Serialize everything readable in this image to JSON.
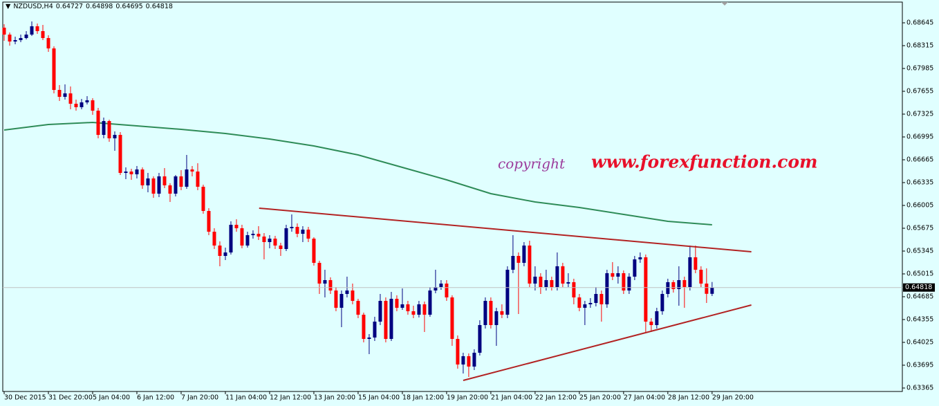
{
  "chart_data": {
    "type": "candlestick",
    "header": {
      "symbol": "NZDUSD,H4",
      "ohlc": [
        0.64727,
        0.64898,
        0.64695,
        0.64818
      ]
    },
    "annotations": [
      "copyright",
      "www.forexfunction.com"
    ],
    "up_color": "#000080",
    "down_color": "#ff0000",
    "ylim": [
      0.63325,
      0.68935
    ],
    "yticks": [
      0.68645,
      0.68315,
      0.67985,
      0.67655,
      0.67325,
      0.66995,
      0.66665,
      0.66335,
      0.66005,
      0.65675,
      0.65345,
      0.65015,
      0.64685,
      0.64355,
      0.64025,
      0.63695,
      0.63365
    ],
    "xlim": [
      -0.25,
      162.4
    ],
    "xticks": [
      {
        "value": 0,
        "label": "30 Dec 2015"
      },
      {
        "value": 8,
        "label": "31 Dec 20:00"
      },
      {
        "value": 16,
        "label": "5 Jan 04:00"
      },
      {
        "value": 24,
        "label": "6 Jan 12:00"
      },
      {
        "value": 32,
        "label": "7 Jan 20:00"
      },
      {
        "value": 40,
        "label": "11 Jan 04:00"
      },
      {
        "value": 48,
        "label": "12 Jan 12:00"
      },
      {
        "value": 56,
        "label": "13 Jan 20:00"
      },
      {
        "value": 64,
        "label": "15 Jan 04:00"
      },
      {
        "value": 72,
        "label": "18 Jan 12:00"
      },
      {
        "value": 80,
        "label": "19 Jan 20:00"
      },
      {
        "value": 88,
        "label": "21 Jan 04:00"
      },
      {
        "value": 96,
        "label": "22 Jan 12:00"
      },
      {
        "value": 104,
        "label": "25 Jan 20:00"
      },
      {
        "value": 112,
        "label": "27 Jan 04:00"
      },
      {
        "value": 120,
        "label": "28 Jan 12:00"
      },
      {
        "value": 128,
        "label": "29 Jan 20:00"
      }
    ],
    "candles": [
      [
        0.68575,
        0.68625,
        0.68385,
        0.68475
      ],
      [
        0.68475,
        0.68505,
        0.68315,
        0.68375
      ],
      [
        0.68375,
        0.68445,
        0.68335,
        0.68395
      ],
      [
        0.68395,
        0.68475,
        0.68365,
        0.68425
      ],
      [
        0.68425,
        0.68525,
        0.68405,
        0.68475
      ],
      [
        0.68475,
        0.68665,
        0.68455,
        0.68595
      ],
      [
        0.68595,
        0.68635,
        0.68485,
        0.68525
      ],
      [
        0.68525,
        0.68615,
        0.68395,
        0.68425
      ],
      [
        0.68425,
        0.68465,
        0.68225,
        0.68275
      ],
      [
        0.68275,
        0.68305,
        0.67625,
        0.67675
      ],
      [
        0.67675,
        0.67745,
        0.67515,
        0.67575
      ],
      [
        0.67575,
        0.67755,
        0.67535,
        0.67625
      ],
      [
        0.67625,
        0.67725,
        0.67395,
        0.67475
      ],
      [
        0.67475,
        0.67535,
        0.67375,
        0.67425
      ],
      [
        0.67425,
        0.67545,
        0.67395,
        0.67495
      ],
      [
        0.67495,
        0.67585,
        0.67465,
        0.67525
      ],
      [
        0.67525,
        0.67555,
        0.67315,
        0.67375
      ],
      [
        0.67375,
        0.67415,
        0.66975,
        0.67025
      ],
      [
        0.67025,
        0.67275,
        0.66975,
        0.67225
      ],
      [
        0.67225,
        0.67245,
        0.66925,
        0.66975
      ],
      [
        0.66975,
        0.67075,
        0.66795,
        0.67025
      ],
      [
        0.67025,
        0.67065,
        0.66445,
        0.66475
      ],
      [
        0.66475,
        0.66555,
        0.66385,
        0.66495
      ],
      [
        0.66495,
        0.66535,
        0.66375,
        0.66455
      ],
      [
        0.66455,
        0.66575,
        0.66395,
        0.66525
      ],
      [
        0.66525,
        0.66555,
        0.66245,
        0.66295
      ],
      [
        0.66295,
        0.66475,
        0.66195,
        0.66395
      ],
      [
        0.66395,
        0.66425,
        0.66115,
        0.66175
      ],
      [
        0.66175,
        0.66475,
        0.66125,
        0.66425
      ],
      [
        0.66425,
        0.66545,
        0.66255,
        0.66295
      ],
      [
        0.66295,
        0.66325,
        0.66055,
        0.66175
      ],
      [
        0.66175,
        0.66445,
        0.66135,
        0.66425
      ],
      [
        0.66425,
        0.66515,
        0.66225,
        0.66275
      ],
      [
        0.66275,
        0.66735,
        0.66245,
        0.66525
      ],
      [
        0.66525,
        0.66575,
        0.66425,
        0.66495
      ],
      [
        0.66495,
        0.66615,
        0.66225,
        0.66275
      ],
      [
        0.66275,
        0.66305,
        0.65885,
        0.65925
      ],
      [
        0.65925,
        0.65965,
        0.65575,
        0.65625
      ],
      [
        0.65625,
        0.65675,
        0.65375,
        0.65425
      ],
      [
        0.65425,
        0.65485,
        0.65125,
        0.65275
      ],
      [
        0.65275,
        0.65395,
        0.65215,
        0.65325
      ],
      [
        0.65325,
        0.65775,
        0.65295,
        0.65725
      ],
      [
        0.65725,
        0.65805,
        0.65625,
        0.65675
      ],
      [
        0.65675,
        0.65725,
        0.65385,
        0.65425
      ],
      [
        0.65425,
        0.65625,
        0.65395,
        0.65575
      ],
      [
        0.65575,
        0.65645,
        0.65525,
        0.65595
      ],
      [
        0.65595,
        0.65705,
        0.65505,
        0.65555
      ],
      [
        0.65555,
        0.65605,
        0.65225,
        0.65475
      ],
      [
        0.65475,
        0.65575,
        0.65385,
        0.65525
      ],
      [
        0.65525,
        0.65565,
        0.65375,
        0.65425
      ],
      [
        0.65425,
        0.65465,
        0.65275,
        0.65375
      ],
      [
        0.65375,
        0.65725,
        0.65345,
        0.65675
      ],
      [
        0.65675,
        0.65875,
        0.65625,
        0.65695
      ],
      [
        0.65695,
        0.65745,
        0.65545,
        0.65595
      ],
      [
        0.65595,
        0.65705,
        0.65475,
        0.65655
      ],
      [
        0.65655,
        0.65695,
        0.65475,
        0.65525
      ],
      [
        0.65525,
        0.65545,
        0.65135,
        0.65175
      ],
      [
        0.65175,
        0.65205,
        0.64725,
        0.64875
      ],
      [
        0.64875,
        0.65075,
        0.64675,
        0.64925
      ],
      [
        0.64925,
        0.64965,
        0.64725,
        0.64775
      ],
      [
        0.64775,
        0.64825,
        0.64475,
        0.64525
      ],
      [
        0.64525,
        0.64775,
        0.64245,
        0.64725
      ],
      [
        0.64725,
        0.64975,
        0.64675,
        0.64775
      ],
      [
        0.64775,
        0.64875,
        0.64575,
        0.64625
      ],
      [
        0.64625,
        0.64655,
        0.64375,
        0.64425
      ],
      [
        0.64425,
        0.64455,
        0.64025,
        0.64075
      ],
      [
        0.64075,
        0.64145,
        0.63855,
        0.64095
      ],
      [
        0.64095,
        0.64395,
        0.64045,
        0.64325
      ],
      [
        0.64325,
        0.64725,
        0.64275,
        0.64625
      ],
      [
        0.64625,
        0.64675,
        0.64025,
        0.64075
      ],
      [
        0.64075,
        0.64755,
        0.64045,
        0.64655
      ],
      [
        0.64655,
        0.64705,
        0.64475,
        0.64525
      ],
      [
        0.64525,
        0.64805,
        0.64495,
        0.64575
      ],
      [
        0.64575,
        0.64625,
        0.64425,
        0.64475
      ],
      [
        0.64475,
        0.64555,
        0.64375,
        0.64425
      ],
      [
        0.64425,
        0.64625,
        0.64385,
        0.64575
      ],
      [
        0.64575,
        0.64615,
        0.64175,
        0.64425
      ],
      [
        0.64425,
        0.64825,
        0.64395,
        0.64775
      ],
      [
        0.64775,
        0.65075,
        0.64735,
        0.64825
      ],
      [
        0.64825,
        0.64925,
        0.64785,
        0.64875
      ],
      [
        0.64875,
        0.64925,
        0.64625,
        0.64675
      ],
      [
        0.64675,
        0.64705,
        0.63975,
        0.64075
      ],
      [
        0.64075,
        0.64125,
        0.63645,
        0.63705
      ],
      [
        0.63705,
        0.63875,
        0.63575,
        0.63825
      ],
      [
        0.63825,
        0.63865,
        0.63525,
        0.63675
      ],
      [
        0.63675,
        0.63925,
        0.63625,
        0.63875
      ],
      [
        0.63875,
        0.64345,
        0.63835,
        0.64275
      ],
      [
        0.64275,
        0.64675,
        0.64225,
        0.64625
      ],
      [
        0.64625,
        0.64675,
        0.64225,
        0.64275
      ],
      [
        0.64275,
        0.64525,
        0.63975,
        0.64475
      ],
      [
        0.64475,
        0.64575,
        0.64375,
        0.64425
      ],
      [
        0.64425,
        0.65125,
        0.64375,
        0.65075
      ],
      [
        0.65075,
        0.65575,
        0.65025,
        0.65275
      ],
      [
        0.65275,
        0.65325,
        0.64435,
        0.65175
      ],
      [
        0.65175,
        0.65475,
        0.65125,
        0.65425
      ],
      [
        0.65425,
        0.65495,
        0.64825,
        0.64875
      ],
      [
        0.64875,
        0.65125,
        0.64775,
        0.64975
      ],
      [
        0.64975,
        0.65025,
        0.64725,
        0.64825
      ],
      [
        0.64825,
        0.65075,
        0.64775,
        0.64925
      ],
      [
        0.64925,
        0.64975,
        0.64775,
        0.64825
      ],
      [
        0.64825,
        0.65325,
        0.64775,
        0.65125
      ],
      [
        0.65125,
        0.65175,
        0.64825,
        0.64875
      ],
      [
        0.64875,
        0.65025,
        0.64825,
        0.64895
      ],
      [
        0.64895,
        0.64945,
        0.64575,
        0.64675
      ],
      [
        0.64675,
        0.64725,
        0.64475,
        0.64525
      ],
      [
        0.64525,
        0.64625,
        0.64275,
        0.64575
      ],
      [
        0.64575,
        0.64665,
        0.64525,
        0.64595
      ],
      [
        0.64595,
        0.64825,
        0.64545,
        0.64725
      ],
      [
        0.64725,
        0.64775,
        0.64325,
        0.64575
      ],
      [
        0.64575,
        0.65075,
        0.64525,
        0.65025
      ],
      [
        0.65025,
        0.65185,
        0.64925,
        0.64975
      ],
      [
        0.64975,
        0.65125,
        0.64875,
        0.65025
      ],
      [
        0.65025,
        0.65065,
        0.64725,
        0.64775
      ],
      [
        0.64775,
        0.65025,
        0.64725,
        0.64975
      ],
      [
        0.64975,
        0.65275,
        0.64925,
        0.65225
      ],
      [
        0.65225,
        0.65325,
        0.65175,
        0.65255
      ],
      [
        0.65255,
        0.65295,
        0.64175,
        0.64325
      ],
      [
        0.64325,
        0.64375,
        0.64175,
        0.64275
      ],
      [
        0.64275,
        0.64525,
        0.64225,
        0.64475
      ],
      [
        0.64475,
        0.64775,
        0.64425,
        0.64725
      ],
      [
        0.64725,
        0.64945,
        0.64675,
        0.64895
      ],
      [
        0.64895,
        0.64925,
        0.64745,
        0.64795
      ],
      [
        0.64795,
        0.65125,
        0.64555,
        0.64925
      ],
      [
        0.64925,
        0.64975,
        0.64525,
        0.64825
      ],
      [
        0.64825,
        0.65425,
        0.64775,
        0.65255
      ],
      [
        0.65255,
        0.65425,
        0.65025,
        0.65075
      ],
      [
        0.65075,
        0.65125,
        0.64825,
        0.64875
      ],
      [
        0.64875,
        0.65095,
        0.64595,
        0.64727
      ],
      [
        0.64727,
        0.64898,
        0.64695,
        0.64818
      ]
    ],
    "moving_average": {
      "color": "#2e8b57",
      "x": [
        0,
        8,
        16,
        24,
        32,
        40,
        48,
        56,
        64,
        72,
        80,
        88,
        96,
        104,
        112,
        120,
        128
      ],
      "values": [
        0.67095,
        0.67175,
        0.67205,
        0.67155,
        0.67105,
        0.67045,
        0.66965,
        0.66865,
        0.66735,
        0.66555,
        0.66375,
        0.66175,
        0.66055,
        0.65975,
        0.65875,
        0.65775,
        0.65725
      ]
    },
    "trendlines": [
      {
        "color": "#b22222",
        "x": [
          46.1,
          135.1
        ],
        "values": [
          0.65965,
          0.65335
        ]
      },
      {
        "color": "#b22222",
        "x": [
          83,
          135.1
        ],
        "values": [
          0.63475,
          0.64565
        ]
      }
    ]
  }
}
